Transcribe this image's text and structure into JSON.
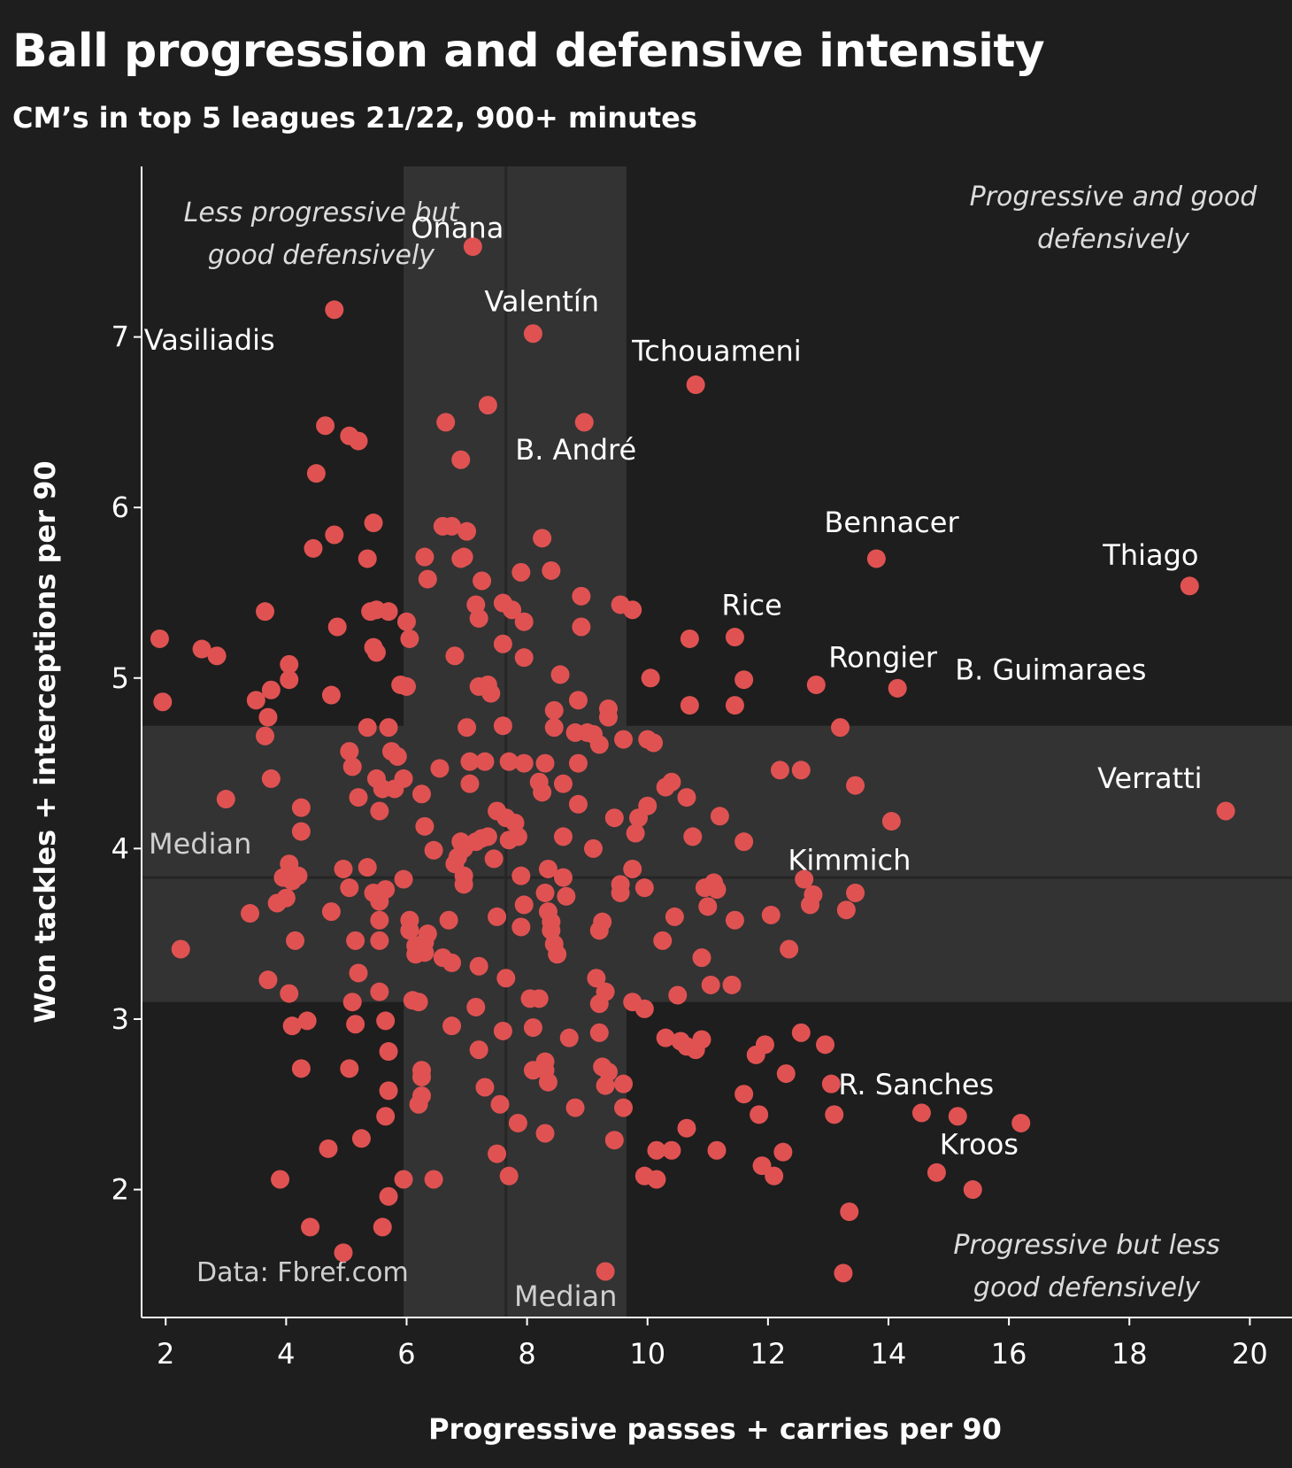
{
  "chart_data": {
    "type": "scatter",
    "title": "Ball progression and defensive intensity",
    "subtitle": "CM’s in top 5 leagues 21/22, 900+ minutes",
    "xlabel": "Progressive passes + carries per 90",
    "ylabel": "Won tackles + interceptions per 90",
    "xlim": [
      1.6,
      20.7
    ],
    "ylim": [
      1.25,
      8.0
    ],
    "x_ticks": [
      2,
      4,
      6,
      8,
      10,
      12,
      14,
      16,
      18,
      20
    ],
    "y_ticks": [
      2,
      3,
      4,
      5,
      6,
      7
    ],
    "median": {
      "x": 7.65,
      "y": 3.83,
      "label": "Median"
    },
    "x_band": [
      5.95,
      9.65
    ],
    "y_band": [
      3.1,
      4.72
    ],
    "source": "Data: Fbref.com",
    "point_color": "#e05252",
    "quadrant_labels": [
      {
        "name": "top-left",
        "lines": [
          "Less progressive but",
          "good defensively"
        ]
      },
      {
        "name": "top-right",
        "lines": [
          "Progressive and good",
          "defensively"
        ]
      },
      {
        "name": "bottom-right",
        "lines": [
          "Progressive but less",
          "good defensively"
        ]
      }
    ],
    "labeled_players": [
      {
        "name": "Onana",
        "x": 7.1,
        "y": 7.53
      },
      {
        "name": "Vasiliadis",
        "x": 4.8,
        "y": 7.16
      },
      {
        "name": "Valentín",
        "x": 8.1,
        "y": 7.02
      },
      {
        "name": "Tchouameni",
        "x": 10.8,
        "y": 6.72
      },
      {
        "name": "B. André",
        "x": 8.95,
        "y": 6.5
      },
      {
        "name": "Bennacer",
        "x": 13.8,
        "y": 5.7
      },
      {
        "name": "Thiago",
        "x": 19.0,
        "y": 5.54
      },
      {
        "name": "Rice",
        "x": 11.45,
        "y": 5.24
      },
      {
        "name": "Rongier",
        "x": 12.8,
        "y": 4.96
      },
      {
        "name": "B. Guimaraes",
        "x": 14.15,
        "y": 4.94
      },
      {
        "name": "Verratti",
        "x": 19.6,
        "y": 4.22
      },
      {
        "name": "Kimmich",
        "x": 14.05,
        "y": 4.16
      },
      {
        "name": "R. Sanches",
        "x": 13.05,
        "y": 2.62
      },
      {
        "name": "Kroos",
        "x": 16.2,
        "y": 2.39
      }
    ],
    "points": [
      [
        1.9,
        5.23
      ],
      [
        1.95,
        4.86
      ],
      [
        2.25,
        3.41
      ],
      [
        2.6,
        5.17
      ],
      [
        2.85,
        5.13
      ],
      [
        3.0,
        4.29
      ],
      [
        3.4,
        3.62
      ],
      [
        3.5,
        4.87
      ],
      [
        3.65,
        5.39
      ],
      [
        3.7,
        4.77
      ],
      [
        3.75,
        4.93
      ],
      [
        3.65,
        4.66
      ],
      [
        3.75,
        4.41
      ],
      [
        3.7,
        3.23
      ],
      [
        3.85,
        3.68
      ],
      [
        3.95,
        3.83
      ],
      [
        4.0,
        3.71
      ],
      [
        4.05,
        3.91
      ],
      [
        4.1,
        3.81
      ],
      [
        4.2,
        3.84
      ],
      [
        4.05,
        5.08
      ],
      [
        4.05,
        4.99
      ],
      [
        4.25,
        4.24
      ],
      [
        4.25,
        4.1
      ],
      [
        4.15,
        3.46
      ],
      [
        4.05,
        3.15
      ],
      [
        4.1,
        2.96
      ],
      [
        4.25,
        2.71
      ],
      [
        4.35,
        2.99
      ],
      [
        3.9,
        2.06
      ],
      [
        4.4,
        1.78
      ],
      [
        4.45,
        5.76
      ],
      [
        4.5,
        6.2
      ],
      [
        4.65,
        6.48
      ],
      [
        4.8,
        5.84
      ],
      [
        4.85,
        5.3
      ],
      [
        4.75,
        4.9
      ],
      [
        4.75,
        3.63
      ],
      [
        4.7,
        2.24
      ],
      [
        4.95,
        1.63
      ],
      [
        5.05,
        6.42
      ],
      [
        5.2,
        6.39
      ],
      [
        5.05,
        4.57
      ],
      [
        5.1,
        4.48
      ],
      [
        5.2,
        4.3
      ],
      [
        4.95,
        3.88
      ],
      [
        5.05,
        3.77
      ],
      [
        5.15,
        3.46
      ],
      [
        5.2,
        3.27
      ],
      [
        5.1,
        3.1
      ],
      [
        5.15,
        2.97
      ],
      [
        5.05,
        2.71
      ],
      [
        5.25,
        2.3
      ],
      [
        5.45,
        5.91
      ],
      [
        5.35,
        5.7
      ],
      [
        5.4,
        5.39
      ],
      [
        5.5,
        5.4
      ],
      [
        5.45,
        5.18
      ],
      [
        5.5,
        5.15
      ],
      [
        5.35,
        4.71
      ],
      [
        5.5,
        4.41
      ],
      [
        5.6,
        4.35
      ],
      [
        5.55,
        4.22
      ],
      [
        5.35,
        3.89
      ],
      [
        5.45,
        3.74
      ],
      [
        5.55,
        3.69
      ],
      [
        5.65,
        3.76
      ],
      [
        5.55,
        3.58
      ],
      [
        5.55,
        3.46
      ],
      [
        5.55,
        3.16
      ],
      [
        5.65,
        2.99
      ],
      [
        5.7,
        2.81
      ],
      [
        5.7,
        2.58
      ],
      [
        5.65,
        2.43
      ],
      [
        5.6,
        1.78
      ],
      [
        5.7,
        1.96
      ],
      [
        5.7,
        5.39
      ],
      [
        5.7,
        4.71
      ],
      [
        5.75,
        4.57
      ],
      [
        5.85,
        4.54
      ],
      [
        5.8,
        4.35
      ],
      [
        5.95,
        4.41
      ],
      [
        5.9,
        4.96
      ],
      [
        6.0,
        4.95
      ],
      [
        6.05,
        5.23
      ],
      [
        6.0,
        5.33
      ],
      [
        5.95,
        3.82
      ],
      [
        6.05,
        3.52
      ],
      [
        6.05,
        3.58
      ],
      [
        6.1,
        3.11
      ],
      [
        5.95,
        2.06
      ],
      [
        6.15,
        3.43
      ],
      [
        6.15,
        3.38
      ],
      [
        6.25,
        3.4
      ],
      [
        6.3,
        3.39
      ],
      [
        6.3,
        3.45
      ],
      [
        6.35,
        3.5
      ],
      [
        6.25,
        2.7
      ],
      [
        6.25,
        2.66
      ],
      [
        6.25,
        2.55
      ],
      [
        6.2,
        2.5
      ],
      [
        6.2,
        3.1
      ],
      [
        6.3,
        4.13
      ],
      [
        6.25,
        4.32
      ],
      [
        6.35,
        5.58
      ],
      [
        6.3,
        5.71
      ],
      [
        6.45,
        3.99
      ],
      [
        6.45,
        2.06
      ],
      [
        6.55,
        4.47
      ],
      [
        6.6,
        3.36
      ],
      [
        6.6,
        5.89
      ],
      [
        6.65,
        6.5
      ],
      [
        6.75,
        5.89
      ],
      [
        6.8,
        5.13
      ],
      [
        6.75,
        3.33
      ],
      [
        6.8,
        3.91
      ],
      [
        6.7,
        3.58
      ],
      [
        6.75,
        2.96
      ],
      [
        6.9,
        4.04
      ],
      [
        6.85,
        3.95
      ],
      [
        6.95,
        4.0
      ],
      [
        6.95,
        3.84
      ],
      [
        6.95,
        3.79
      ],
      [
        6.9,
        5.7
      ],
      [
        6.95,
        5.71
      ],
      [
        6.9,
        6.28
      ],
      [
        7.0,
        5.86
      ],
      [
        7.0,
        4.71
      ],
      [
        7.05,
        4.51
      ],
      [
        7.05,
        4.38
      ],
      [
        7.15,
        5.43
      ],
      [
        7.2,
        5.35
      ],
      [
        7.15,
        4.04
      ],
      [
        7.25,
        4.06
      ],
      [
        7.35,
        4.07
      ],
      [
        7.3,
        4.51
      ],
      [
        7.2,
        4.95
      ],
      [
        7.35,
        4.96
      ],
      [
        7.4,
        4.91
      ],
      [
        7.2,
        3.31
      ],
      [
        7.15,
        3.07
      ],
      [
        7.2,
        2.82
      ],
      [
        7.3,
        2.6
      ],
      [
        7.25,
        5.57
      ],
      [
        7.35,
        6.6
      ],
      [
        7.5,
        3.6
      ],
      [
        7.45,
        3.94
      ],
      [
        7.5,
        4.22
      ],
      [
        7.5,
        2.21
      ],
      [
        7.55,
        2.5
      ],
      [
        7.6,
        5.2
      ],
      [
        7.6,
        4.72
      ],
      [
        7.65,
        4.18
      ],
      [
        7.7,
        4.05
      ],
      [
        7.7,
        4.51
      ],
      [
        7.65,
        3.24
      ],
      [
        7.6,
        2.93
      ],
      [
        7.6,
        5.44
      ],
      [
        7.75,
        5.4
      ],
      [
        7.7,
        2.08
      ],
      [
        7.8,
        4.15
      ],
      [
        7.85,
        4.07
      ],
      [
        7.9,
        3.84
      ],
      [
        7.95,
        3.67
      ],
      [
        7.9,
        3.54
      ],
      [
        7.85,
        2.39
      ],
      [
        7.95,
        4.5
      ],
      [
        7.95,
        5.12
      ],
      [
        7.9,
        5.62
      ],
      [
        7.95,
        5.33
      ],
      [
        8.05,
        3.12
      ],
      [
        8.1,
        2.7
      ],
      [
        8.1,
        2.95
      ],
      [
        8.2,
        3.12
      ],
      [
        8.2,
        4.39
      ],
      [
        8.25,
        4.33
      ],
      [
        8.3,
        4.5
      ],
      [
        8.25,
        5.82
      ],
      [
        8.35,
        3.63
      ],
      [
        8.35,
        3.88
      ],
      [
        8.3,
        3.74
      ],
      [
        8.4,
        3.57
      ],
      [
        8.4,
        3.52
      ],
      [
        8.45,
        3.44
      ],
      [
        8.5,
        3.38
      ],
      [
        8.3,
        2.75
      ],
      [
        8.3,
        2.7
      ],
      [
        8.35,
        2.63
      ],
      [
        8.3,
        2.33
      ],
      [
        8.4,
        5.63
      ],
      [
        8.45,
        4.81
      ],
      [
        8.45,
        4.71
      ],
      [
        8.55,
        5.02
      ],
      [
        8.6,
        4.38
      ],
      [
        8.6,
        4.07
      ],
      [
        8.6,
        3.83
      ],
      [
        8.65,
        3.72
      ],
      [
        8.7,
        2.89
      ],
      [
        8.8,
        4.68
      ],
      [
        8.85,
        4.5
      ],
      [
        8.85,
        4.26
      ],
      [
        8.85,
        4.87
      ],
      [
        8.9,
        5.48
      ],
      [
        8.9,
        5.3
      ],
      [
        8.8,
        2.48
      ],
      [
        9.0,
        4.68
      ],
      [
        9.1,
        4.67
      ],
      [
        9.1,
        4.0
      ],
      [
        9.2,
        4.61
      ],
      [
        9.2,
        3.52
      ],
      [
        9.25,
        3.57
      ],
      [
        9.15,
        3.24
      ],
      [
        9.2,
        3.09
      ],
      [
        9.2,
        2.92
      ],
      [
        9.25,
        2.72
      ],
      [
        9.3,
        2.61
      ],
      [
        9.3,
        3.16
      ],
      [
        9.35,
        2.69
      ],
      [
        9.35,
        4.77
      ],
      [
        9.35,
        4.82
      ],
      [
        9.3,
        1.52
      ],
      [
        9.45,
        4.18
      ],
      [
        9.45,
        2.29
      ],
      [
        9.55,
        3.74
      ],
      [
        9.55,
        3.79
      ],
      [
        9.55,
        5.43
      ],
      [
        9.6,
        2.48
      ],
      [
        9.6,
        2.62
      ],
      [
        9.6,
        4.64
      ],
      [
        9.75,
        5.4
      ],
      [
        9.75,
        3.88
      ],
      [
        9.75,
        3.1
      ],
      [
        9.8,
        4.09
      ],
      [
        9.85,
        4.18
      ],
      [
        9.95,
        3.77
      ],
      [
        9.95,
        3.06
      ],
      [
        9.95,
        2.08
      ],
      [
        10.0,
        4.64
      ],
      [
        10.0,
        4.25
      ],
      [
        10.05,
        5.0
      ],
      [
        10.1,
        4.62
      ],
      [
        10.15,
        2.06
      ],
      [
        10.15,
        2.23
      ],
      [
        10.25,
        3.46
      ],
      [
        10.3,
        2.89
      ],
      [
        10.3,
        4.36
      ],
      [
        10.4,
        4.39
      ],
      [
        10.4,
        2.23
      ],
      [
        10.45,
        3.6
      ],
      [
        10.5,
        3.14
      ],
      [
        10.55,
        2.87
      ],
      [
        10.65,
        2.36
      ],
      [
        10.65,
        2.84
      ],
      [
        10.65,
        4.3
      ],
      [
        10.7,
        5.23
      ],
      [
        10.7,
        4.84
      ],
      [
        10.75,
        4.07
      ],
      [
        10.8,
        2.82
      ],
      [
        10.9,
        2.88
      ],
      [
        10.9,
        3.36
      ],
      [
        10.95,
        3.77
      ],
      [
        11.0,
        3.66
      ],
      [
        11.05,
        3.2
      ],
      [
        11.1,
        3.8
      ],
      [
        11.15,
        2.23
      ],
      [
        11.15,
        3.76
      ],
      [
        11.2,
        4.19
      ],
      [
        11.4,
        3.2
      ],
      [
        11.45,
        4.84
      ],
      [
        11.45,
        3.58
      ],
      [
        11.6,
        4.99
      ],
      [
        11.6,
        4.04
      ],
      [
        11.6,
        2.56
      ],
      [
        11.8,
        2.79
      ],
      [
        11.85,
        2.44
      ],
      [
        11.95,
        2.85
      ],
      [
        11.9,
        2.14
      ],
      [
        12.05,
        3.61
      ],
      [
        12.1,
        2.08
      ],
      [
        12.2,
        4.46
      ],
      [
        12.25,
        2.22
      ],
      [
        12.3,
        2.68
      ],
      [
        12.35,
        3.41
      ],
      [
        12.55,
        2.92
      ],
      [
        12.55,
        4.46
      ],
      [
        12.6,
        3.82
      ],
      [
        12.75,
        3.73
      ],
      [
        12.7,
        3.67
      ],
      [
        12.95,
        2.85
      ],
      [
        13.1,
        2.44
      ],
      [
        13.2,
        4.71
      ],
      [
        13.3,
        3.64
      ],
      [
        13.25,
        1.51
      ],
      [
        13.35,
        1.87
      ],
      [
        13.45,
        3.74
      ],
      [
        13.45,
        4.37
      ],
      [
        14.55,
        2.45
      ],
      [
        14.8,
        2.1
      ],
      [
        15.15,
        2.43
      ],
      [
        15.4,
        2.0
      ]
    ]
  }
}
